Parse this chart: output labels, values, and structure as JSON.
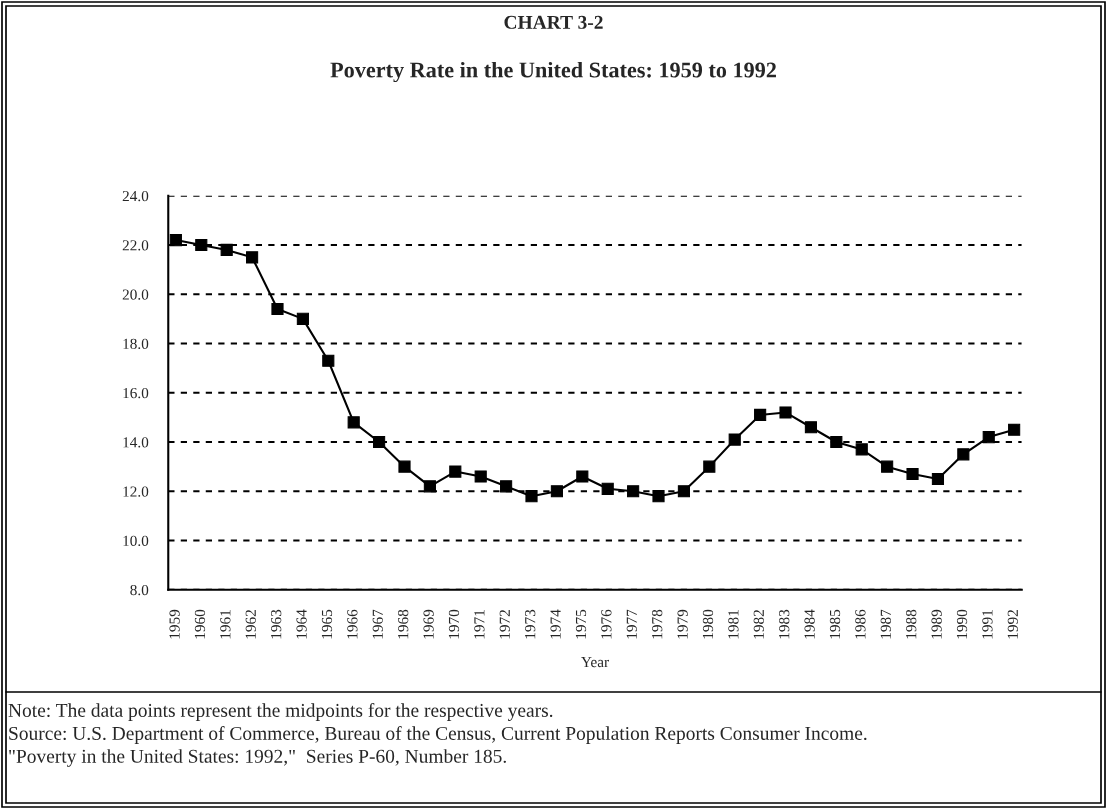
{
  "chart_data": {
    "type": "line",
    "title": "CHART 3-2",
    "subtitle": "Poverty Rate in the United States: 1959 to 1992",
    "xlabel": "Year",
    "categories": [
      "1959",
      "1960",
      "1961",
      "1962",
      "1963",
      "1964",
      "1965",
      "1966",
      "1967",
      "1968",
      "1969",
      "1970",
      "1971",
      "1972",
      "1973",
      "1974",
      "1975",
      "1976",
      "1977",
      "1978",
      "1979",
      "1980",
      "1981",
      "1982",
      "1983",
      "1984",
      "1985",
      "1986",
      "1987",
      "1988",
      "1989",
      "1990",
      "1991",
      "1992"
    ],
    "series": [
      {
        "color": "#000000",
        "values": [
          22.2,
          22.0,
          21.8,
          21.5,
          19.4,
          19.0,
          17.3,
          14.8,
          14.0,
          13.0,
          12.2,
          12.8,
          12.6,
          12.2,
          11.8,
          12.0,
          12.6,
          12.1,
          12.0,
          11.8,
          12.0,
          13.0,
          14.1,
          15.1,
          15.2,
          14.6,
          14.0,
          13.7,
          13.0,
          12.7,
          12.5,
          13.5,
          14.2,
          14.5
        ]
      }
    ],
    "ylim": [
      8,
      24
    ],
    "yticks": [
      {
        "value": 8,
        "label": "8.0"
      },
      {
        "value": 10,
        "label": "10.0"
      },
      {
        "value": 12,
        "label": "12.0"
      },
      {
        "value": 14,
        "label": "14.0"
      },
      {
        "value": 16,
        "label": "16.0"
      },
      {
        "value": 18,
        "label": "18.0"
      },
      {
        "value": 20,
        "label": "20.0"
      },
      {
        "value": 22,
        "label": "22.0"
      },
      {
        "value": 24,
        "label": "24.0"
      }
    ],
    "grid": "y",
    "marker": "square",
    "line_style": "solid",
    "legend": false,
    "annotations": [
      "Note: The data points represent the midpoints for the respective years.",
      "Source: U.S. Department of Commerce, Bureau of the Census, Current Population Reports Consumer Income.",
      "\"Poverty in the United States: 1992,\"  Series P-60, Number 185."
    ]
  }
}
